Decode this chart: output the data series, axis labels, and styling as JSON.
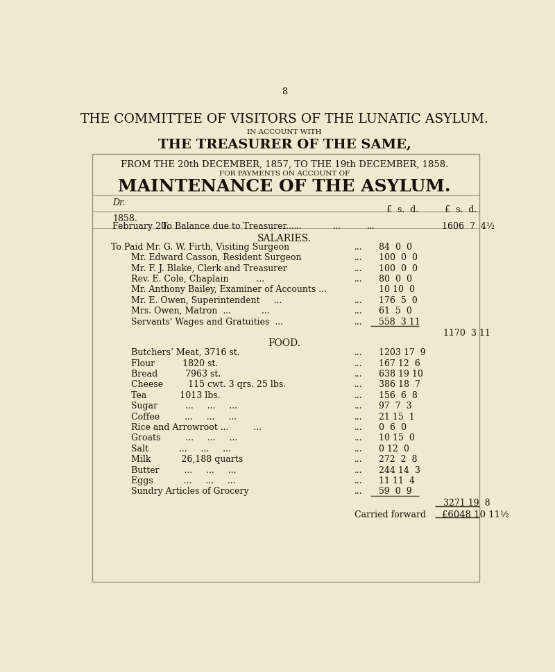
{
  "page_number": "8",
  "bg_color": "#f0e8d0",
  "title1": "THE COMMITTEE OF VISITORS OF THE LUNATIC ASYLUM.",
  "subtitle1": "IN ACCOUNT WITH",
  "title2": "THE TREASURER OF THE SAME,",
  "box_line1": "FROM THE 20th DECEMBER, 1857, TO THE 19th DECEMBER, 1858.",
  "box_line2": "FOR PAYMENTS ON ACCOUNT OF",
  "box_title": "MAINTENANCE OF THE ASYLUM.",
  "dr_label": "Dr.",
  "year_label": "1858.",
  "col_header1": "£  s.  d.",
  "col_header2": "£  s.  d.",
  "balance_date": "February 20.",
  "balance_desc": "To Balance due to Treasurer...",
  "balance_dots1": "...",
  "balance_dots2": "...",
  "balance_dots3": "...",
  "balance_val": "1606  7  4½",
  "salaries_header": "SALARIES.",
  "salary_items": [
    {
      "indent": false,
      "label": "To Paid Mr. G. W. Firth, Visiting Surgeon",
      "dots1": "...",
      "val": "84  0  0"
    },
    {
      "indent": true,
      "label": "Mr. Edward Casson, Resident Surgeon",
      "dots1": "...",
      "val": "100  0  0"
    },
    {
      "indent": true,
      "label": "Mr. F. J. Blake, Clerk and Treasurer",
      "dots1": "...",
      "val": "100  0  0"
    },
    {
      "indent": true,
      "label": "Rev. E. Cole, Chaplain          ...",
      "dots1": "...",
      "val": "80  0  0"
    },
    {
      "indent": true,
      "label": "Mr. Anthony Bailey, Examiner of Accounts ...",
      "dots1": "",
      "val": "10 10  0"
    },
    {
      "indent": true,
      "label": "Mr. E. Owen, Superintendent     ...",
      "dots1": "...",
      "val": "176  5  0"
    },
    {
      "indent": true,
      "label": "Mrs. Owen, Matron  ...           ...",
      "dots1": "...",
      "val": "61  5  0"
    },
    {
      "indent": true,
      "label": "Servants' Wages and Gratuities  ...",
      "dots1": "...",
      "val": "558  3 11"
    }
  ],
  "salaries_total": "1170  3 11",
  "food_header": "FOOD.",
  "food_items": [
    {
      "label": "Butchers’ Meat, 3716 st.",
      "d1": "...",
      "d2": "...",
      "val": "1203 17  9"
    },
    {
      "label": "Flour          1820 st.",
      "d1": "...",
      "d2": "...",
      "val": "167 12  6"
    },
    {
      "label": "Bread          7963 st.",
      "d1": "...",
      "d2": "...",
      "val": "638 19 10"
    },
    {
      "label": "Cheese         115 cwt. 3 qrs. 25 lbs.",
      "d1": "...",
      "d2": "...",
      "val": "386 18  7"
    },
    {
      "label": "Tea            1013 lbs.",
      "d1": "...",
      "d2": "...",
      "val": "156  6  8"
    },
    {
      "label": "Sugar          ...     ...     ...",
      "d1": "...",
      "d2": "...",
      "val": "97  7  3"
    },
    {
      "label": "Coffee         ...     ...     ...",
      "d1": "...",
      "d2": "...",
      "val": "21 15  1"
    },
    {
      "label": "Rice and Arrowroot ...         ...",
      "d1": "...",
      "d2": "...",
      "val": "0  6  0"
    },
    {
      "label": "Groats         ...     ...     ...",
      "d1": "...",
      "d2": "...",
      "val": "10 15  0"
    },
    {
      "label": "Salt           ...     ...     ...",
      "d1": "...",
      "d2": "...",
      "val": "0 12  0"
    },
    {
      "label": "Milk           26,188 quarts",
      "d1": "...",
      "d2": "...",
      "val": "272  2  8"
    },
    {
      "label": "Butter         ...     ...     ...",
      "d1": "...",
      "d2": "...",
      "val": "244 14  3"
    },
    {
      "label": "Eggs           ...     ...     ...",
      "d1": "...",
      "d2": "...",
      "val": "11 11  4"
    },
    {
      "label": "Sundry Articles of Grocery",
      "d1": "...",
      "d2": "...",
      "val": "59  0  9"
    }
  ],
  "food_total": "3271 19  8",
  "carried_forward_label": "Carried forward",
  "carried_forward_val": "£6048 10 11½",
  "text_color": "#1a1008",
  "border_color": "#999080",
  "line_color": "#333322"
}
